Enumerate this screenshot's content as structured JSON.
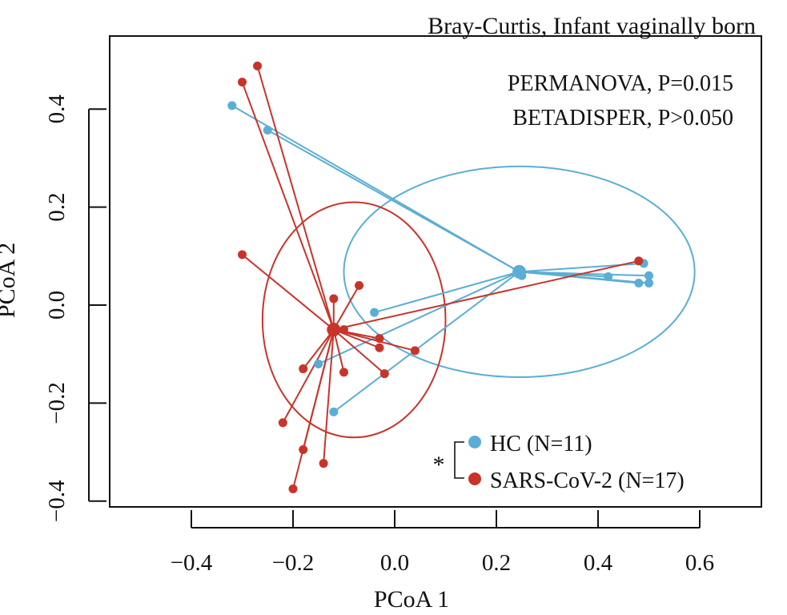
{
  "chart_data": {
    "type": "scatter",
    "title": "Bray-Curtis, Infant vaginally born",
    "xlabel": "PCoA 1",
    "ylabel": "PCoA 2",
    "xlim": [
      -0.52,
      0.68
    ],
    "ylim": [
      -0.41,
      0.54
    ],
    "x_ticks": [
      -0.4,
      -0.2,
      0.0,
      0.2,
      0.4,
      0.6
    ],
    "x_tick_labels": [
      "−0.4",
      "−0.2",
      "0.0",
      "0.2",
      "0.4",
      "0.6"
    ],
    "y_ticks": [
      -0.4,
      -0.2,
      0.0,
      0.2,
      0.4
    ],
    "y_tick_labels": [
      "−0.4",
      "−0.2",
      "0.0",
      "0.2",
      "0.4"
    ],
    "annotations": [
      "PERMANOVA, P=0.015",
      "BETADISPER, P>0.050"
    ],
    "legend_marker": "*",
    "grid": false,
    "legend_position": "bottom-right",
    "series": [
      {
        "name": "HC (N=11)",
        "color": "#5aaed4",
        "centroid": [
          0.245,
          0.068
        ],
        "ellipse": {
          "center": [
            0.245,
            0.068
          ],
          "rx": 0.345,
          "ry": 0.215
        },
        "points": [
          [
            -0.32,
            0.407
          ],
          [
            -0.25,
            0.357
          ],
          [
            0.25,
            0.06
          ],
          [
            0.42,
            0.058
          ],
          [
            0.49,
            0.085
          ],
          [
            0.48,
            0.045
          ],
          [
            0.5,
            0.06
          ],
          [
            0.5,
            0.045
          ],
          [
            -0.04,
            -0.015
          ],
          [
            -0.15,
            -0.12
          ],
          [
            -0.12,
            -0.218
          ]
        ]
      },
      {
        "name": "SARS-CoV-2 (N=17)",
        "color": "#c8342a",
        "centroid": [
          -0.12,
          -0.05
        ],
        "ellipse": {
          "center": [
            -0.08,
            -0.03
          ],
          "rx": 0.18,
          "ry": 0.24
        },
        "points": [
          [
            -0.27,
            0.488
          ],
          [
            -0.3,
            0.455
          ],
          [
            -0.3,
            0.103
          ],
          [
            -0.07,
            0.04
          ],
          [
            -0.12,
            0.013
          ],
          [
            0.48,
            0.09
          ],
          [
            -0.03,
            -0.068
          ],
          [
            -0.03,
            -0.087
          ],
          [
            0.04,
            -0.093
          ],
          [
            -0.1,
            -0.137
          ],
          [
            -0.02,
            -0.14
          ],
          [
            -0.18,
            -0.13
          ],
          [
            -0.22,
            -0.24
          ],
          [
            -0.18,
            -0.295
          ],
          [
            -0.14,
            -0.323
          ],
          [
            -0.2,
            -0.375
          ],
          [
            -0.1,
            -0.05
          ]
        ]
      }
    ]
  }
}
